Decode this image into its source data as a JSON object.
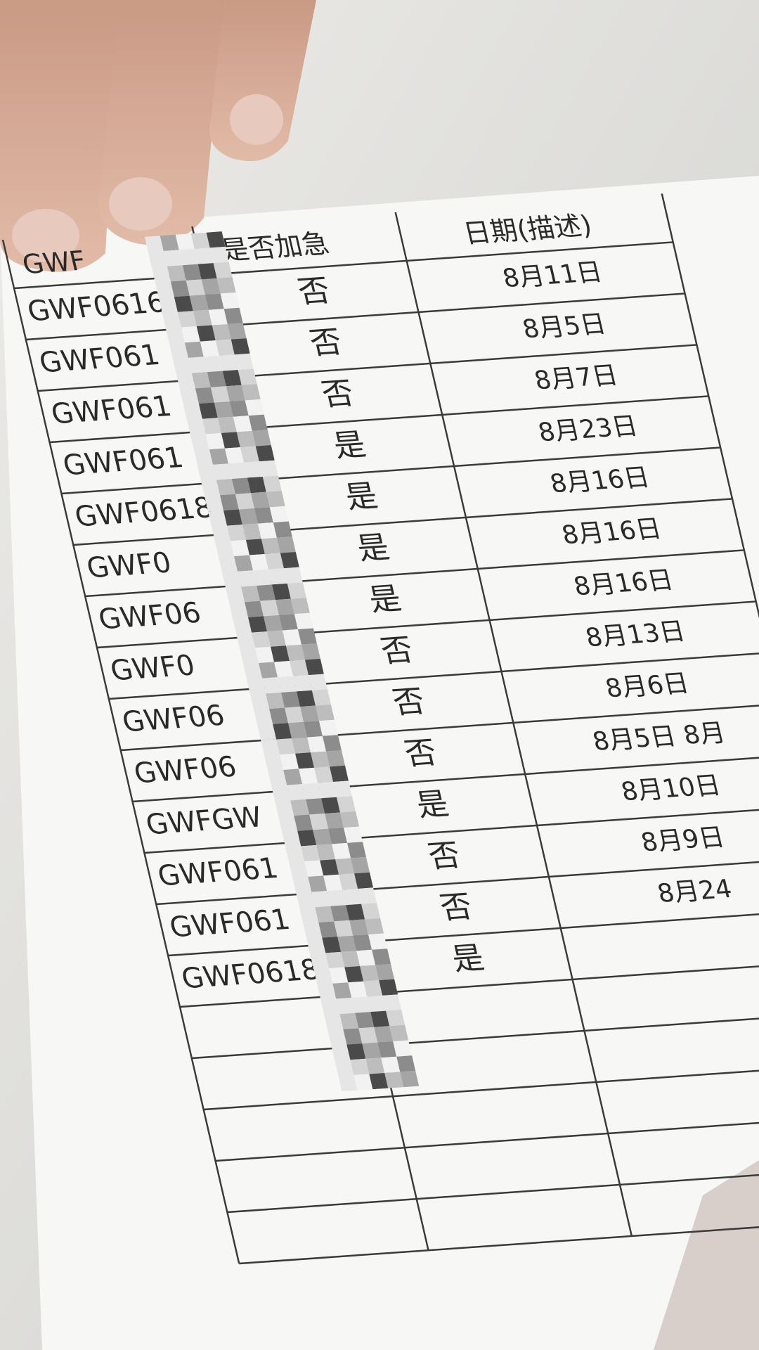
{
  "table": {
    "header": [
      "GWF",
      "是否加急",
      "日期(描述)"
    ],
    "rows": [
      [
        "GWF0616",
        "否",
        "8月11日"
      ],
      [
        "GWF061",
        "否",
        "8月5日"
      ],
      [
        "GWF061",
        "否",
        "8月7日"
      ],
      [
        "GWF061",
        "是",
        "8月23日"
      ],
      [
        "GWF0618",
        "是",
        "8月16日"
      ],
      [
        "GWF0",
        "是",
        "8月16日"
      ],
      [
        "GWF06",
        "是",
        "8月16日"
      ],
      [
        "GWF0",
        "否",
        "8月13日"
      ],
      [
        "GWF06",
        "否",
        "8月6日"
      ],
      [
        "GWF06",
        "否",
        "8月5日 8月"
      ],
      [
        "GWFGW",
        "是",
        "8月10日"
      ],
      [
        "GWF061",
        "否",
        "8月9日"
      ],
      [
        "GWF061",
        "否",
        "8月24"
      ],
      [
        "GWF0618",
        "是",
        ""
      ]
    ]
  }
}
